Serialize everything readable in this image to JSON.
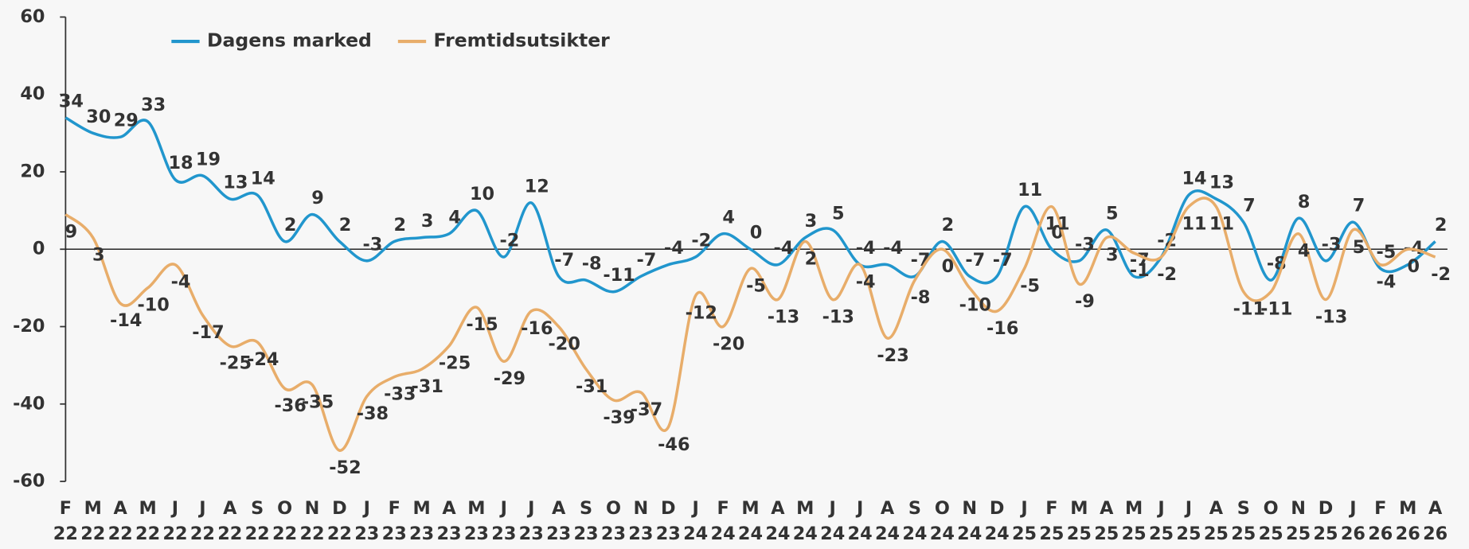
{
  "chart_data": {
    "type": "line",
    "categories": [
      "F\n22",
      "M\n22",
      "A\n22",
      "M\n22",
      "J\n22",
      "J\n22",
      "A\n22",
      "S\n22",
      "O\n22",
      "N\n22",
      "D\n22",
      "J\n23",
      "F\n23",
      "M\n23",
      "A\n23",
      "M\n23",
      "J\n23",
      "J\n23",
      "A\n23",
      "S\n23",
      "O\n23",
      "N\n23",
      "D\n23",
      "J\n24",
      "F\n24",
      "M\n24",
      "A\n24",
      "M\n24",
      "J\n24",
      "J\n24",
      "A\n24",
      "S\n24",
      "O\n24",
      "N\n24",
      "D\n24",
      "J\n25",
      "F\n25",
      "M\n25",
      "A\n25",
      "M\n25",
      "J\n25",
      "J\n25",
      "A\n25",
      "S\n25",
      "O\n25",
      "N\n25",
      "D\n25",
      "J\n26",
      "F\n26",
      "M\n26",
      "A\n26"
    ],
    "series": [
      {
        "name": "Dagens marked",
        "color": "#2196cd",
        "values": [
          34,
          30,
          29,
          33,
          18,
          19,
          13,
          14,
          2,
          9,
          2,
          -3,
          2,
          3,
          4,
          10,
          -2,
          12,
          -7,
          -8,
          -11,
          -7,
          -4,
          -2,
          4,
          0,
          -4,
          3,
          5,
          -4,
          -4,
          -7,
          2,
          -7,
          -7,
          11,
          0,
          -3,
          5,
          -7,
          -2,
          14,
          13,
          7,
          -8,
          8,
          -3,
          7,
          -5,
          -4,
          2
        ]
      },
      {
        "name": "Fremtidsutsikter",
        "color": "#e8ad6a",
        "values": [
          9,
          3,
          -14,
          -10,
          -4,
          -17,
          -25,
          -24,
          -36,
          -35,
          -52,
          -38,
          -33,
          -31,
          -25,
          -15,
          -29,
          -16,
          -20,
          -31,
          -39,
          -37,
          -46,
          -12,
          -20,
          -5,
          -13,
          2,
          -13,
          -4,
          -23,
          -8,
          0,
          -10,
          -16,
          -5,
          11,
          -9,
          3,
          -1,
          -2,
          11,
          11,
          -11,
          -11,
          4,
          -13,
          5,
          -4,
          0,
          -2
        ]
      }
    ],
    "ylim": [
      -60,
      60
    ],
    "yticks": [
      -60,
      -40,
      -20,
      0,
      20,
      40,
      60
    ],
    "zero_line": true,
    "legend": "top-left"
  }
}
